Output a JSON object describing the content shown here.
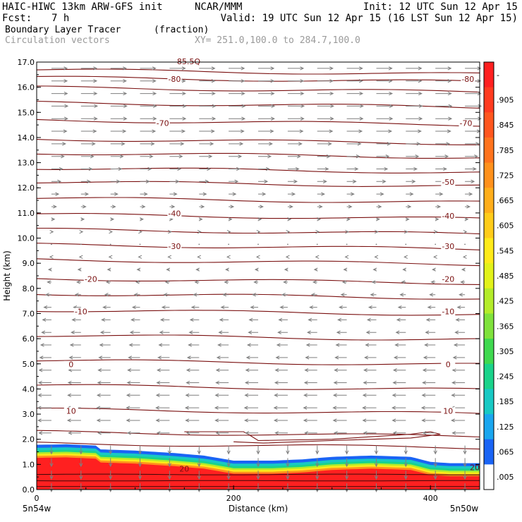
{
  "header": {
    "title_left": "HAIC-HIWC 13km ARW-GFS init",
    "org": "NCAR/MMM",
    "init": "Init: 12 UTC Sun 12 Apr 15",
    "fcst_label": "Fcst:",
    "fcst_value": "7 h",
    "valid": "Valid: 19 UTC Sun 12 Apr 15 (16 LST Sun 12 Apr 15)",
    "field_name": "Boundary Layer Tracer",
    "field_unit": "(fraction)",
    "overlay_name": "Circulation vectors",
    "xy_range": "XY= 251.0,100.0 to 284.7,100.0"
  },
  "chart_data": {
    "type": "heatmap",
    "xlabel": "Distance (km)",
    "ylabel": "Height (km)",
    "xlim": [
      0,
      450
    ],
    "ylim": [
      0,
      17
    ],
    "x_ticks": [
      0,
      200,
      400
    ],
    "x_tick_labels": [
      "0",
      "200",
      "400"
    ],
    "y_ticks": [
      0,
      1,
      2,
      3,
      4,
      5,
      6,
      7,
      8,
      9,
      10,
      11,
      12,
      13,
      14,
      15,
      16,
      17
    ],
    "y_tick_labels": [
      "0.0",
      "1.0",
      "2.0",
      "3.0",
      "4.0",
      "5.0",
      "6.0",
      "7.0",
      "8.0",
      "9.0",
      "10.0",
      "11.0",
      "12.0",
      "13.0",
      "14.0",
      "15.0",
      "16.0",
      "17.0"
    ],
    "x_end_labels": [
      "5n54w",
      "5n50w"
    ],
    "colorbar": {
      "labels": [
        "-",
        ".905",
        ".845",
        ".785",
        ".725",
        ".665",
        ".605",
        ".545",
        ".485",
        ".425",
        ".365",
        ".305",
        ".245",
        ".185",
        ".125",
        ".065",
        ".005"
      ],
      "colors": [
        "#ff2020",
        "#ff3b1f",
        "#ff561e",
        "#ff731d",
        "#ff911c",
        "#ffae1b",
        "#ffcc1a",
        "#ffea19",
        "#e2f21a",
        "#b4ec2a",
        "#7fe23c",
        "#3fd94f",
        "#1ad38a",
        "#18c9c4",
        "#1aa6ef",
        "#1a64f5",
        "#ffffff"
      ]
    },
    "contour_label_values": [
      -80,
      -70,
      -50,
      -40,
      -30,
      -20,
      -10,
      0,
      10,
      20
    ],
    "contour_labels": [
      {
        "text": "-80",
        "x": 140,
        "y": 16.3
      },
      {
        "text": "-80",
        "x": 438,
        "y": 16.3
      },
      {
        "text": "-70",
        "x": 128,
        "y": 14.55
      },
      {
        "text": "-70",
        "x": 436,
        "y": 14.55
      },
      {
        "text": "-50",
        "x": 418,
        "y": 12.2
      },
      {
        "text": "-40",
        "x": 140,
        "y": 10.95
      },
      {
        "text": "-40",
        "x": 418,
        "y": 10.85
      },
      {
        "text": "-30",
        "x": 140,
        "y": 9.65
      },
      {
        "text": "-30",
        "x": 418,
        "y": 9.65
      },
      {
        "text": "-20",
        "x": 55,
        "y": 8.35
      },
      {
        "text": "-20",
        "x": 418,
        "y": 8.35
      },
      {
        "text": "-10",
        "x": 45,
        "y": 7.05
      },
      {
        "text": "-10",
        "x": 418,
        "y": 7.05
      },
      {
        "text": "0",
        "x": 35,
        "y": 4.95
      },
      {
        "text": "0",
        "x": 418,
        "y": 4.95
      },
      {
        "text": "10",
        "x": 35,
        "y": 3.1
      },
      {
        "text": "10",
        "x": 418,
        "y": 3.1
      },
      {
        "text": "20",
        "x": 150,
        "y": 0.8
      },
      {
        "text": "20",
        "x": 445,
        "y": 0.85
      }
    ],
    "top_label": "-85.5Q",
    "contour_levels_y": [
      16.6,
      16.3,
      15.9,
      15.3,
      14.6,
      13.85,
      13.3,
      12.7,
      12.15,
      11.5,
      10.85,
      10.25,
      9.65,
      9.05,
      8.3,
      7.7,
      7.05,
      6.05,
      5.05,
      4.05,
      3.1,
      2.2,
      1.75
    ],
    "tracer_top_x": [
      0,
      30,
      60,
      62,
      100,
      140,
      170,
      200,
      240,
      270,
      300,
      340,
      380,
      400,
      420,
      450
    ],
    "tracer_top_y": [
      1.78,
      1.8,
      1.75,
      1.6,
      1.55,
      1.45,
      1.35,
      1.15,
      1.15,
      1.2,
      1.3,
      1.35,
      1.3,
      1.1,
      1.05,
      1.05
    ],
    "vectors": {
      "nx": 15,
      "ny": 34,
      "u_profile_z": [
        0,
        1,
        2,
        3,
        4,
        5,
        6,
        7,
        8,
        9,
        10,
        11,
        12,
        13,
        14,
        15,
        16,
        17
      ],
      "u_profile": [
        0.0,
        -0.55,
        -0.65,
        -0.75,
        -0.7,
        -0.65,
        -0.55,
        -0.45,
        -0.25,
        -0.12,
        0.05,
        0.2,
        0.45,
        0.65,
        0.8,
        0.9,
        0.85,
        0.85
      ]
    }
  }
}
